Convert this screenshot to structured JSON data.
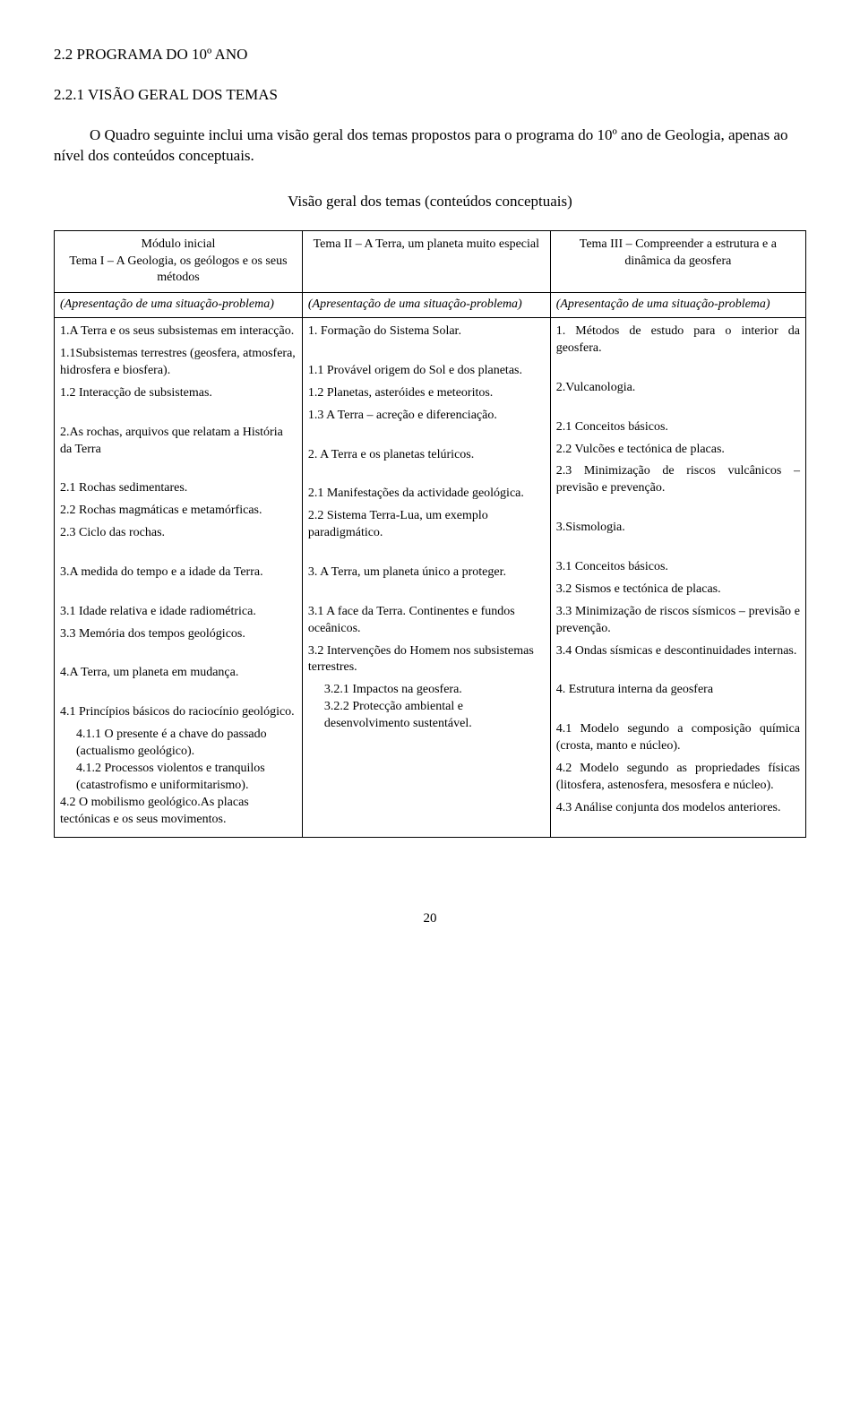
{
  "headings": {
    "main": "2.2 PROGRAMA DO 10º ANO",
    "sub": "2.2.1 VISÃO GERAL DOS TEMAS"
  },
  "intro": "O Quadro seguinte inclui uma visão geral dos temas propostos para o programa do 10º ano de Geologia, apenas ao nível dos conteúdos conceptuais.",
  "caption": "Visão geral dos temas (conteúdos conceptuais)",
  "table": {
    "headers": {
      "c1_line1": "Módulo inicial",
      "c1_line2": "Tema I – A Geologia, os geólogos e os seus métodos",
      "c2": "Tema II – A Terra, um planeta muito especial",
      "c3": "Tema III – Compreender a estrutura e a dinâmica da geosfera"
    },
    "introRow": {
      "c1": "(Apresentação de uma situação-problema)",
      "c2": "(Apresentação de uma situação-problema)",
      "c3": "(Apresentação de uma situação-problema)"
    },
    "col1": {
      "p1": "1.A Terra e os seus subsistemas em interacção.",
      "p2": "1.1Subsistemas terrestres (geosfera, atmosfera, hidrosfera e biosfera).",
      "p3": "1.2 Interacção de subsistemas.",
      "p4": "2.As rochas, arquivos que relatam a História da Terra",
      "p5": "2.1 Rochas sedimentares.",
      "p6": "2.2 Rochas magmáticas e metamórficas.",
      "p7": "2.3 Ciclo das rochas.",
      "p8": "3.A medida do tempo e a idade da Terra.",
      "p9": "3.1 Idade relativa e idade radiométrica.",
      "p10": "3.3 Memória dos tempos geológicos.",
      "p11": "4.A Terra, um planeta em mudança.",
      "p12": "4.1 Princípios básicos do raciocínio geológico.",
      "p13": "4.1.1 O presente é a chave do passado (actualismo geológico).",
      "p14": "4.1.2 Processos violentos e tranquilos (catastrofismo e uniformitarismo).",
      "p15_a": "4.2 O mobilismo geológico.",
      "p15_b": "As placas tectónicas e os seus movimentos."
    },
    "col2": {
      "p1": "1. Formação do Sistema Solar.",
      "p2": "1.1 Provável origem do Sol e dos planetas.",
      "p3": "1.2 Planetas, asteróides e meteoritos.",
      "p4": "1.3 A Terra – acreção e diferenciação.",
      "p5": "2. A Terra e os planetas telúricos.",
      "p6": "2.1 Manifestações da actividade geológica.",
      "p7": "2.2 Sistema Terra-Lua, um exemplo paradigmático.",
      "p8": "3. A Terra, um planeta único a proteger.",
      "p9": "3.1 A face da Terra. Continentes e fundos oceânicos.",
      "p10": "3.2 Intervenções do Homem nos subsistemas terrestres.",
      "p11": "3.2.1 Impactos na geosfera.",
      "p12": "3.2.2 Protecção ambiental e desenvolvimento sustentável."
    },
    "col3": {
      "p1": "1. Métodos de estudo para o interior da geosfera.",
      "p2": "2.Vulcanologia.",
      "p3": "2.1 Conceitos básicos.",
      "p4": "2.2 Vulcões e tectónica de placas.",
      "p5": "2.3 Minimização de riscos vulcânicos – previsão e prevenção.",
      "p6": "3.Sismologia.",
      "p7": "3.1  Conceitos básicos.",
      "p8": "3.2  Sismos e tectónica de placas.",
      "p9": "3.3  Minimização de riscos sísmicos – previsão e prevenção.",
      "p10": "3.4  Ondas sísmicas e descontinuidades internas.",
      "p11": "4. Estrutura interna da geosfera",
      "p12": "4.1 Modelo segundo a composição química (crosta, manto e núcleo).",
      "p13": "4.2 Modelo segundo as propriedades físicas (litosfera, astenosfera, mesosfera e núcleo).",
      "p14": "4.3 Análise conjunta dos modelos anteriores."
    }
  },
  "pageNumber": "20"
}
